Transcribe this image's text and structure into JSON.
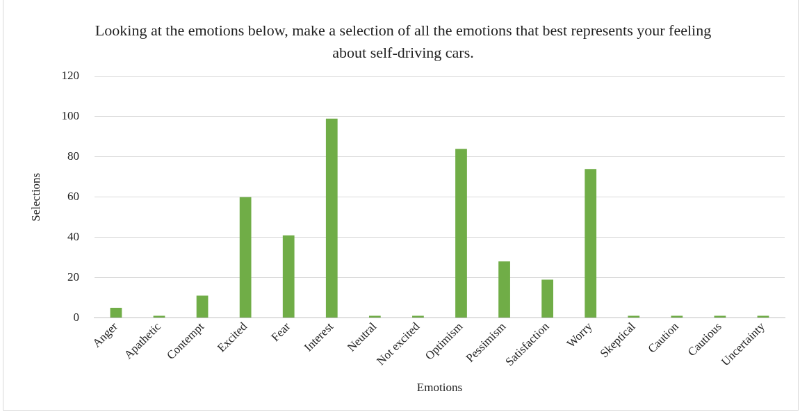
{
  "chart_data": {
    "type": "bar",
    "title": "Looking at the emotions below, make a selection of all the emotions that best represents your feeling about self-driving cars.",
    "xlabel": "Emotions",
    "ylabel": "Selections",
    "categories": [
      "Anger",
      "Apathetic",
      "Contempt",
      "Excited",
      "Fear",
      "Interest",
      "Neutral",
      "Not excited",
      "Optimism",
      "Pessimism",
      "Satisfaction",
      "Worry",
      "Skeptical",
      "Caution",
      "Cautious",
      "Uncertainty"
    ],
    "values": [
      5,
      1,
      11,
      60,
      41,
      99,
      1,
      1,
      84,
      28,
      19,
      74,
      1,
      1,
      1,
      1
    ],
    "color": "#70ad47",
    "ylim": [
      0,
      120
    ],
    "yticks": [
      0,
      20,
      40,
      60,
      80,
      100,
      120
    ],
    "grid": "y"
  }
}
